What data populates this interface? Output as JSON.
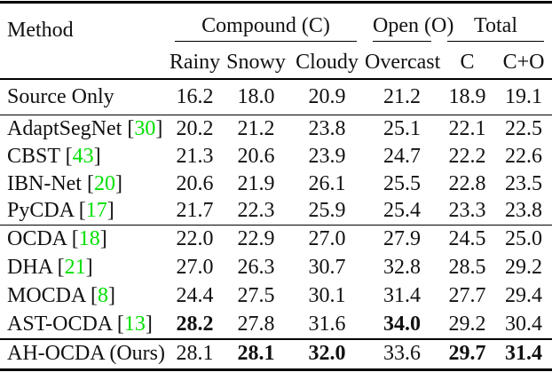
{
  "table": {
    "method_header": "Method",
    "columns": [
      {
        "group": "Compound (C)",
        "subcolumns": [
          "Rainy",
          "Snowy",
          "Cloudy"
        ]
      },
      {
        "group": "Open (O)",
        "subcolumns": [
          "Overcast"
        ]
      },
      {
        "group": "Total",
        "subcolumns": [
          "C",
          "C+O"
        ]
      }
    ],
    "rows": [
      {
        "method": "Source Only",
        "citation": "",
        "values": [
          "16.2",
          "18.0",
          "20.9",
          "21.2",
          "18.9",
          "19.1"
        ],
        "bold": [
          false,
          false,
          false,
          false,
          false,
          false
        ],
        "section_end": true
      },
      {
        "method": "AdaptSegNet",
        "citation": "30",
        "values": [
          "20.2",
          "21.2",
          "23.8",
          "25.1",
          "22.1",
          "22.5"
        ],
        "bold": [
          false,
          false,
          false,
          false,
          false,
          false
        ],
        "section_end": false
      },
      {
        "method": "CBST",
        "citation": "43",
        "values": [
          "21.3",
          "20.6",
          "23.9",
          "24.7",
          "22.2",
          "22.6"
        ],
        "bold": [
          false,
          false,
          false,
          false,
          false,
          false
        ],
        "section_end": false
      },
      {
        "method": "IBN-Net",
        "citation": "20",
        "values": [
          "20.6",
          "21.9",
          "26.1",
          "25.5",
          "22.8",
          "23.5"
        ],
        "bold": [
          false,
          false,
          false,
          false,
          false,
          false
        ],
        "section_end": false
      },
      {
        "method": "PyCDA",
        "citation": "17",
        "values": [
          "21.7",
          "22.3",
          "25.9",
          "25.4",
          "23.3",
          "23.8"
        ],
        "bold": [
          false,
          false,
          false,
          false,
          false,
          false
        ],
        "section_end": true
      },
      {
        "method": "OCDA",
        "citation": "18",
        "values": [
          "22.0",
          "22.9",
          "27.0",
          "27.9",
          "24.5",
          "25.0"
        ],
        "bold": [
          false,
          false,
          false,
          false,
          false,
          false
        ],
        "section_end": false
      },
      {
        "method": "DHA",
        "citation": "21",
        "values": [
          "27.0",
          "26.3",
          "30.7",
          "32.8",
          "28.5",
          "29.2"
        ],
        "bold": [
          false,
          false,
          false,
          false,
          false,
          false
        ],
        "section_end": false
      },
      {
        "method": "MOCDA",
        "citation": "8",
        "values": [
          "24.4",
          "27.5",
          "30.1",
          "31.4",
          "27.7",
          "29.4"
        ],
        "bold": [
          false,
          false,
          false,
          false,
          false,
          false
        ],
        "section_end": false
      },
      {
        "method": "AST-OCDA",
        "citation": "13",
        "values": [
          "28.2",
          "27.8",
          "31.6",
          "34.0",
          "29.2",
          "30.4"
        ],
        "bold": [
          true,
          false,
          false,
          true,
          false,
          false
        ],
        "section_end": true
      },
      {
        "method": "AH-OCDA (Ours)",
        "citation": "",
        "values": [
          "28.1",
          "28.1",
          "32.0",
          "33.6",
          "29.7",
          "31.4"
        ],
        "bold": [
          false,
          true,
          true,
          false,
          true,
          true
        ],
        "section_end": false
      }
    ]
  },
  "colors": {
    "citation": "#00e000",
    "text": "#111111",
    "rule": "#000000"
  }
}
